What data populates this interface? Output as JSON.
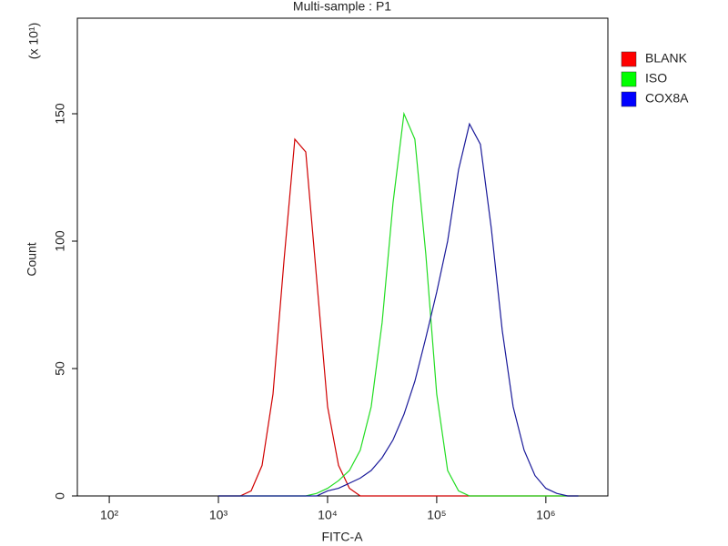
{
  "chart_data": {
    "type": "line",
    "title": "Multi-sample : P1",
    "x_label": "FITC-A",
    "y_label": "Count",
    "y_annotation": "(x 10¹)",
    "x_scale": "log",
    "x": [
      1000,
      1259,
      1585,
      1995,
      2512,
      3162,
      3981,
      5012,
      6310,
      7943,
      10000,
      12589,
      15849,
      19953,
      25119,
      31623,
      39811,
      50119,
      63096,
      79433,
      100000,
      125893,
      158489,
      199526,
      251189,
      316228,
      398107,
      501187,
      630957,
      794328,
      1000000,
      1258925,
      1584893,
      1995262
    ],
    "series": [
      {
        "name": "BLANK",
        "color": "#d00000",
        "values": [
          0,
          0,
          0,
          2,
          12,
          40,
          92,
          140,
          135,
          85,
          35,
          12,
          3,
          0,
          0,
          0,
          0,
          0,
          0,
          0,
          0,
          0,
          0,
          0,
          0,
          0,
          0,
          0,
          0,
          0,
          0,
          0,
          0,
          0
        ]
      },
      {
        "name": "ISO",
        "color": "#22dd22",
        "values": [
          0,
          0,
          0,
          0,
          0,
          0,
          0,
          0,
          0,
          1,
          3,
          6,
          10,
          18,
          35,
          68,
          115,
          150,
          140,
          95,
          40,
          10,
          2,
          0,
          0,
          0,
          0,
          0,
          0,
          0,
          0,
          0,
          0,
          0
        ]
      },
      {
        "name": "COX8A",
        "color": "#1a1a9a",
        "values": [
          0,
          0,
          0,
          0,
          0,
          0,
          0,
          0,
          0,
          0,
          2,
          3,
          5,
          7,
          10,
          15,
          22,
          32,
          45,
          62,
          80,
          100,
          128,
          146,
          138,
          105,
          65,
          35,
          18,
          8,
          3,
          1,
          0,
          0
        ]
      }
    ],
    "legend_colors": [
      "#ff0000",
      "#00ff00",
      "#0000ff"
    ],
    "xlim": [
      51,
      3700000
    ],
    "xticks": [
      {
        "value": 100,
        "label": "10²"
      },
      {
        "value": 1000,
        "label": "10³"
      },
      {
        "value": 10000,
        "label": "10⁴"
      },
      {
        "value": 100000,
        "label": "10⁵"
      },
      {
        "value": 1000000,
        "label": "10⁶"
      }
    ],
    "ylim": [
      0,
      187.5
    ],
    "yticks": [
      0,
      50,
      100,
      150
    ],
    "grid": false,
    "legend": "right"
  }
}
